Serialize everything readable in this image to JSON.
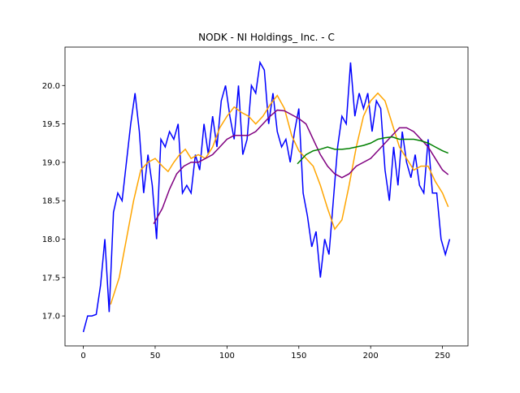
{
  "chart_data": {
    "type": "line",
    "title": "NODK - NI Holdings_ Inc. - C",
    "xlim": [
      -12.75,
      267.75
    ],
    "xticks": [
      0,
      50,
      100,
      150,
      200,
      250
    ],
    "ylim": [
      16.61,
      20.5
    ],
    "yticks": [
      {
        "value": 17.0,
        "label": "17.0"
      },
      {
        "value": 17.5,
        "label": "17.5"
      },
      {
        "value": 18.0,
        "label": "18.0"
      },
      {
        "value": 18.5,
        "label": "18.5"
      },
      {
        "value": 19.0,
        "label": "19.0"
      },
      {
        "value": 19.5,
        "label": "19.5"
      },
      {
        "value": 20.0,
        "label": "20.0"
      }
    ],
    "series": [
      {
        "color": "#0000ff",
        "x": [
          0,
          3,
          6,
          9,
          12,
          15,
          18,
          21,
          24,
          27,
          30,
          33,
          36,
          39,
          42,
          45,
          48,
          51,
          54,
          57,
          60,
          63,
          66,
          69,
          72,
          75,
          78,
          81,
          84,
          87,
          90,
          93,
          96,
          99,
          102,
          105,
          108,
          111,
          114,
          117,
          120,
          123,
          126,
          129,
          132,
          135,
          138,
          141,
          144,
          147,
          150,
          153,
          156,
          159,
          162,
          165,
          168,
          171,
          174,
          177,
          180,
          183,
          186,
          189,
          192,
          195,
          198,
          201,
          204,
          207,
          210,
          213,
          216,
          219,
          222,
          225,
          228,
          231,
          234,
          237,
          240,
          243,
          246,
          249,
          252,
          255
        ],
        "values": [
          16.79,
          17.0,
          17.0,
          17.02,
          17.4,
          18.0,
          17.05,
          18.35,
          18.6,
          18.5,
          19.0,
          19.5,
          19.9,
          19.4,
          18.6,
          19.1,
          18.7,
          18.0,
          19.3,
          19.2,
          19.4,
          19.3,
          19.5,
          18.6,
          18.7,
          18.6,
          19.1,
          18.9,
          19.5,
          19.1,
          19.6,
          19.2,
          19.8,
          20.0,
          19.6,
          19.3,
          20.0,
          19.1,
          19.3,
          20.0,
          19.9,
          20.3,
          20.2,
          19.5,
          19.9,
          19.4,
          19.2,
          19.3,
          19.0,
          19.4,
          19.7,
          18.6,
          18.3,
          17.9,
          18.1,
          17.5,
          18.0,
          17.8,
          18.5,
          19.2,
          19.6,
          19.5,
          20.3,
          19.6,
          19.9,
          19.7,
          19.9,
          19.4,
          19.8,
          19.7,
          18.9,
          18.5,
          19.2,
          18.7,
          19.4,
          19.0,
          18.8,
          19.1,
          18.7,
          18.6,
          19.3,
          18.6,
          18.6,
          18.0,
          17.8,
          18.0
        ]
      },
      {
        "color": "#ffa500",
        "x": [
          19,
          25,
          30,
          35,
          40,
          45,
          50,
          55,
          59,
          63,
          67,
          71,
          75,
          80,
          85,
          90,
          95,
          100,
          105,
          110,
          115,
          120,
          125,
          130,
          135,
          140,
          145,
          150,
          155,
          160,
          165,
          170,
          175,
          180,
          185,
          190,
          195,
          200,
          205,
          210,
          215,
          220,
          225,
          230,
          235,
          240,
          245,
          250,
          254
        ],
        "values": [
          17.15,
          17.5,
          18.0,
          18.5,
          18.9,
          19.0,
          19.05,
          18.95,
          18.88,
          19.0,
          19.1,
          19.17,
          19.05,
          19.1,
          19.05,
          19.2,
          19.45,
          19.6,
          19.72,
          19.65,
          19.6,
          19.5,
          19.6,
          19.75,
          19.87,
          19.7,
          19.35,
          19.15,
          19.05,
          18.95,
          18.7,
          18.4,
          18.13,
          18.25,
          18.7,
          19.2,
          19.6,
          19.8,
          19.9,
          19.8,
          19.5,
          19.2,
          19.05,
          18.9,
          18.95,
          18.95,
          18.75,
          18.6,
          18.42
        ]
      },
      {
        "color": "#800080",
        "x": [
          49,
          55,
          60,
          65,
          70,
          75,
          80,
          85,
          90,
          95,
          100,
          105,
          110,
          115,
          120,
          125,
          130,
          135,
          140,
          145,
          150,
          155,
          160,
          165,
          170,
          175,
          180,
          185,
          190,
          195,
          200,
          205,
          210,
          215,
          220,
          225,
          230,
          235,
          240,
          245,
          250,
          254
        ],
        "values": [
          18.2,
          18.4,
          18.65,
          18.85,
          18.95,
          19.0,
          19.0,
          19.05,
          19.1,
          19.2,
          19.3,
          19.35,
          19.35,
          19.35,
          19.4,
          19.5,
          19.6,
          19.68,
          19.67,
          19.62,
          19.57,
          19.5,
          19.3,
          19.1,
          18.95,
          18.85,
          18.8,
          18.85,
          18.95,
          19.0,
          19.05,
          19.15,
          19.25,
          19.35,
          19.45,
          19.45,
          19.4,
          19.3,
          19.2,
          19.05,
          18.9,
          18.84
        ]
      },
      {
        "color": "#008000",
        "x": [
          149,
          155,
          160,
          165,
          170,
          175,
          180,
          185,
          190,
          195,
          200,
          205,
          210,
          215,
          220,
          225,
          230,
          235,
          240,
          245,
          250,
          254
        ],
        "values": [
          18.98,
          19.1,
          19.15,
          19.17,
          19.2,
          19.17,
          19.17,
          19.18,
          19.2,
          19.22,
          19.25,
          19.3,
          19.32,
          19.33,
          19.3,
          19.3,
          19.3,
          19.28,
          19.25,
          19.2,
          19.15,
          19.12
        ]
      }
    ]
  }
}
